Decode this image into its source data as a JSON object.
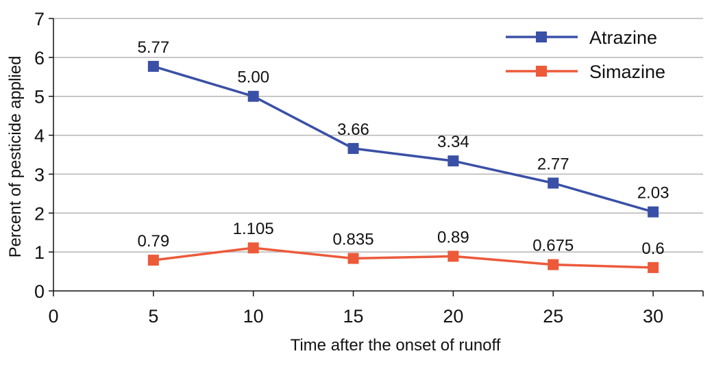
{
  "chart_data": {
    "type": "line",
    "xlabel": "Time after the onset of runoff",
    "ylabel": "Percent of pesticide applied",
    "x_ticks": [
      0,
      5,
      10,
      15,
      20,
      25,
      30
    ],
    "y_ticks": [
      0,
      1,
      2,
      3,
      4,
      5,
      6,
      7
    ],
    "xlim": [
      0,
      32.5
    ],
    "ylim": [
      0,
      7
    ],
    "grid": "horizontal",
    "legend_position": "top-right",
    "series": [
      {
        "name": "Atrazine",
        "color": "#3a50a6",
        "marker": "square",
        "x": [
          5,
          10,
          15,
          20,
          25,
          30
        ],
        "values": [
          5.77,
          5.0,
          3.66,
          3.34,
          2.77,
          2.03
        ],
        "labels": [
          "5.77",
          "5.00",
          "3.66",
          "3.34",
          "2.77",
          "2.03"
        ]
      },
      {
        "name": "Simazine",
        "color": "#ec5a3a",
        "marker": "square",
        "x": [
          5,
          10,
          15,
          20,
          25,
          30
        ],
        "values": [
          0.79,
          1.105,
          0.835,
          0.89,
          0.675,
          0.6
        ],
        "labels": [
          "0.79",
          "1.105",
          "0.835",
          "0.89",
          "0.675",
          "0.6"
        ]
      }
    ]
  }
}
